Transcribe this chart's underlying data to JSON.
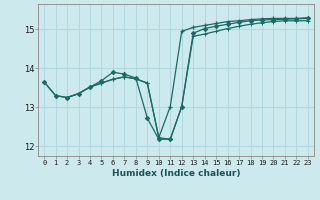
{
  "xlabel": "Humidex (Indice chaleur)",
  "ylabel": "",
  "bg_color": "#cce9ed",
  "grid_color": "#b0d8de",
  "line_color": "#1a6b65",
  "xlim": [
    -0.5,
    23.5
  ],
  "ylim": [
    11.75,
    15.65
  ],
  "yticks": [
    12,
    13,
    14,
    15
  ],
  "xticks": [
    0,
    1,
    2,
    3,
    4,
    5,
    6,
    7,
    8,
    9,
    10,
    11,
    12,
    13,
    14,
    15,
    16,
    17,
    18,
    19,
    20,
    21,
    22,
    23
  ],
  "series1_x": [
    0,
    1,
    2,
    3,
    4,
    5,
    6,
    7,
    8,
    9,
    10,
    11,
    12,
    13,
    14,
    15,
    16,
    17,
    18,
    19,
    20,
    21,
    22,
    23
  ],
  "series1_y": [
    13.65,
    13.3,
    13.25,
    13.35,
    13.52,
    13.62,
    13.72,
    13.78,
    13.73,
    13.62,
    12.22,
    13.02,
    14.95,
    15.05,
    15.1,
    15.15,
    15.2,
    15.22,
    15.25,
    15.27,
    15.28,
    15.28,
    15.28,
    15.3
  ],
  "series2_x": [
    0,
    1,
    2,
    3,
    4,
    5,
    6,
    7,
    8,
    9,
    10,
    11,
    12,
    13,
    14,
    15,
    16,
    17,
    18,
    19,
    20,
    21,
    22,
    23
  ],
  "series2_y": [
    13.65,
    13.3,
    13.25,
    13.35,
    13.52,
    13.68,
    13.9,
    13.85,
    13.75,
    12.72,
    12.18,
    12.18,
    13.02,
    14.9,
    15.02,
    15.08,
    15.13,
    15.18,
    15.22,
    15.24,
    15.25,
    15.26,
    15.27,
    15.28
  ],
  "series3_x": [
    2,
    3,
    4,
    5,
    6,
    7,
    8,
    9,
    10,
    11,
    12,
    13,
    14,
    15,
    16,
    17,
    18,
    19,
    20,
    21,
    22,
    23
  ],
  "series3_y": [
    13.25,
    13.35,
    13.52,
    13.62,
    13.72,
    13.78,
    13.73,
    13.62,
    12.22,
    12.18,
    13.02,
    14.82,
    14.88,
    14.95,
    15.02,
    15.08,
    15.13,
    15.17,
    15.2,
    15.22,
    15.22,
    15.22
  ]
}
